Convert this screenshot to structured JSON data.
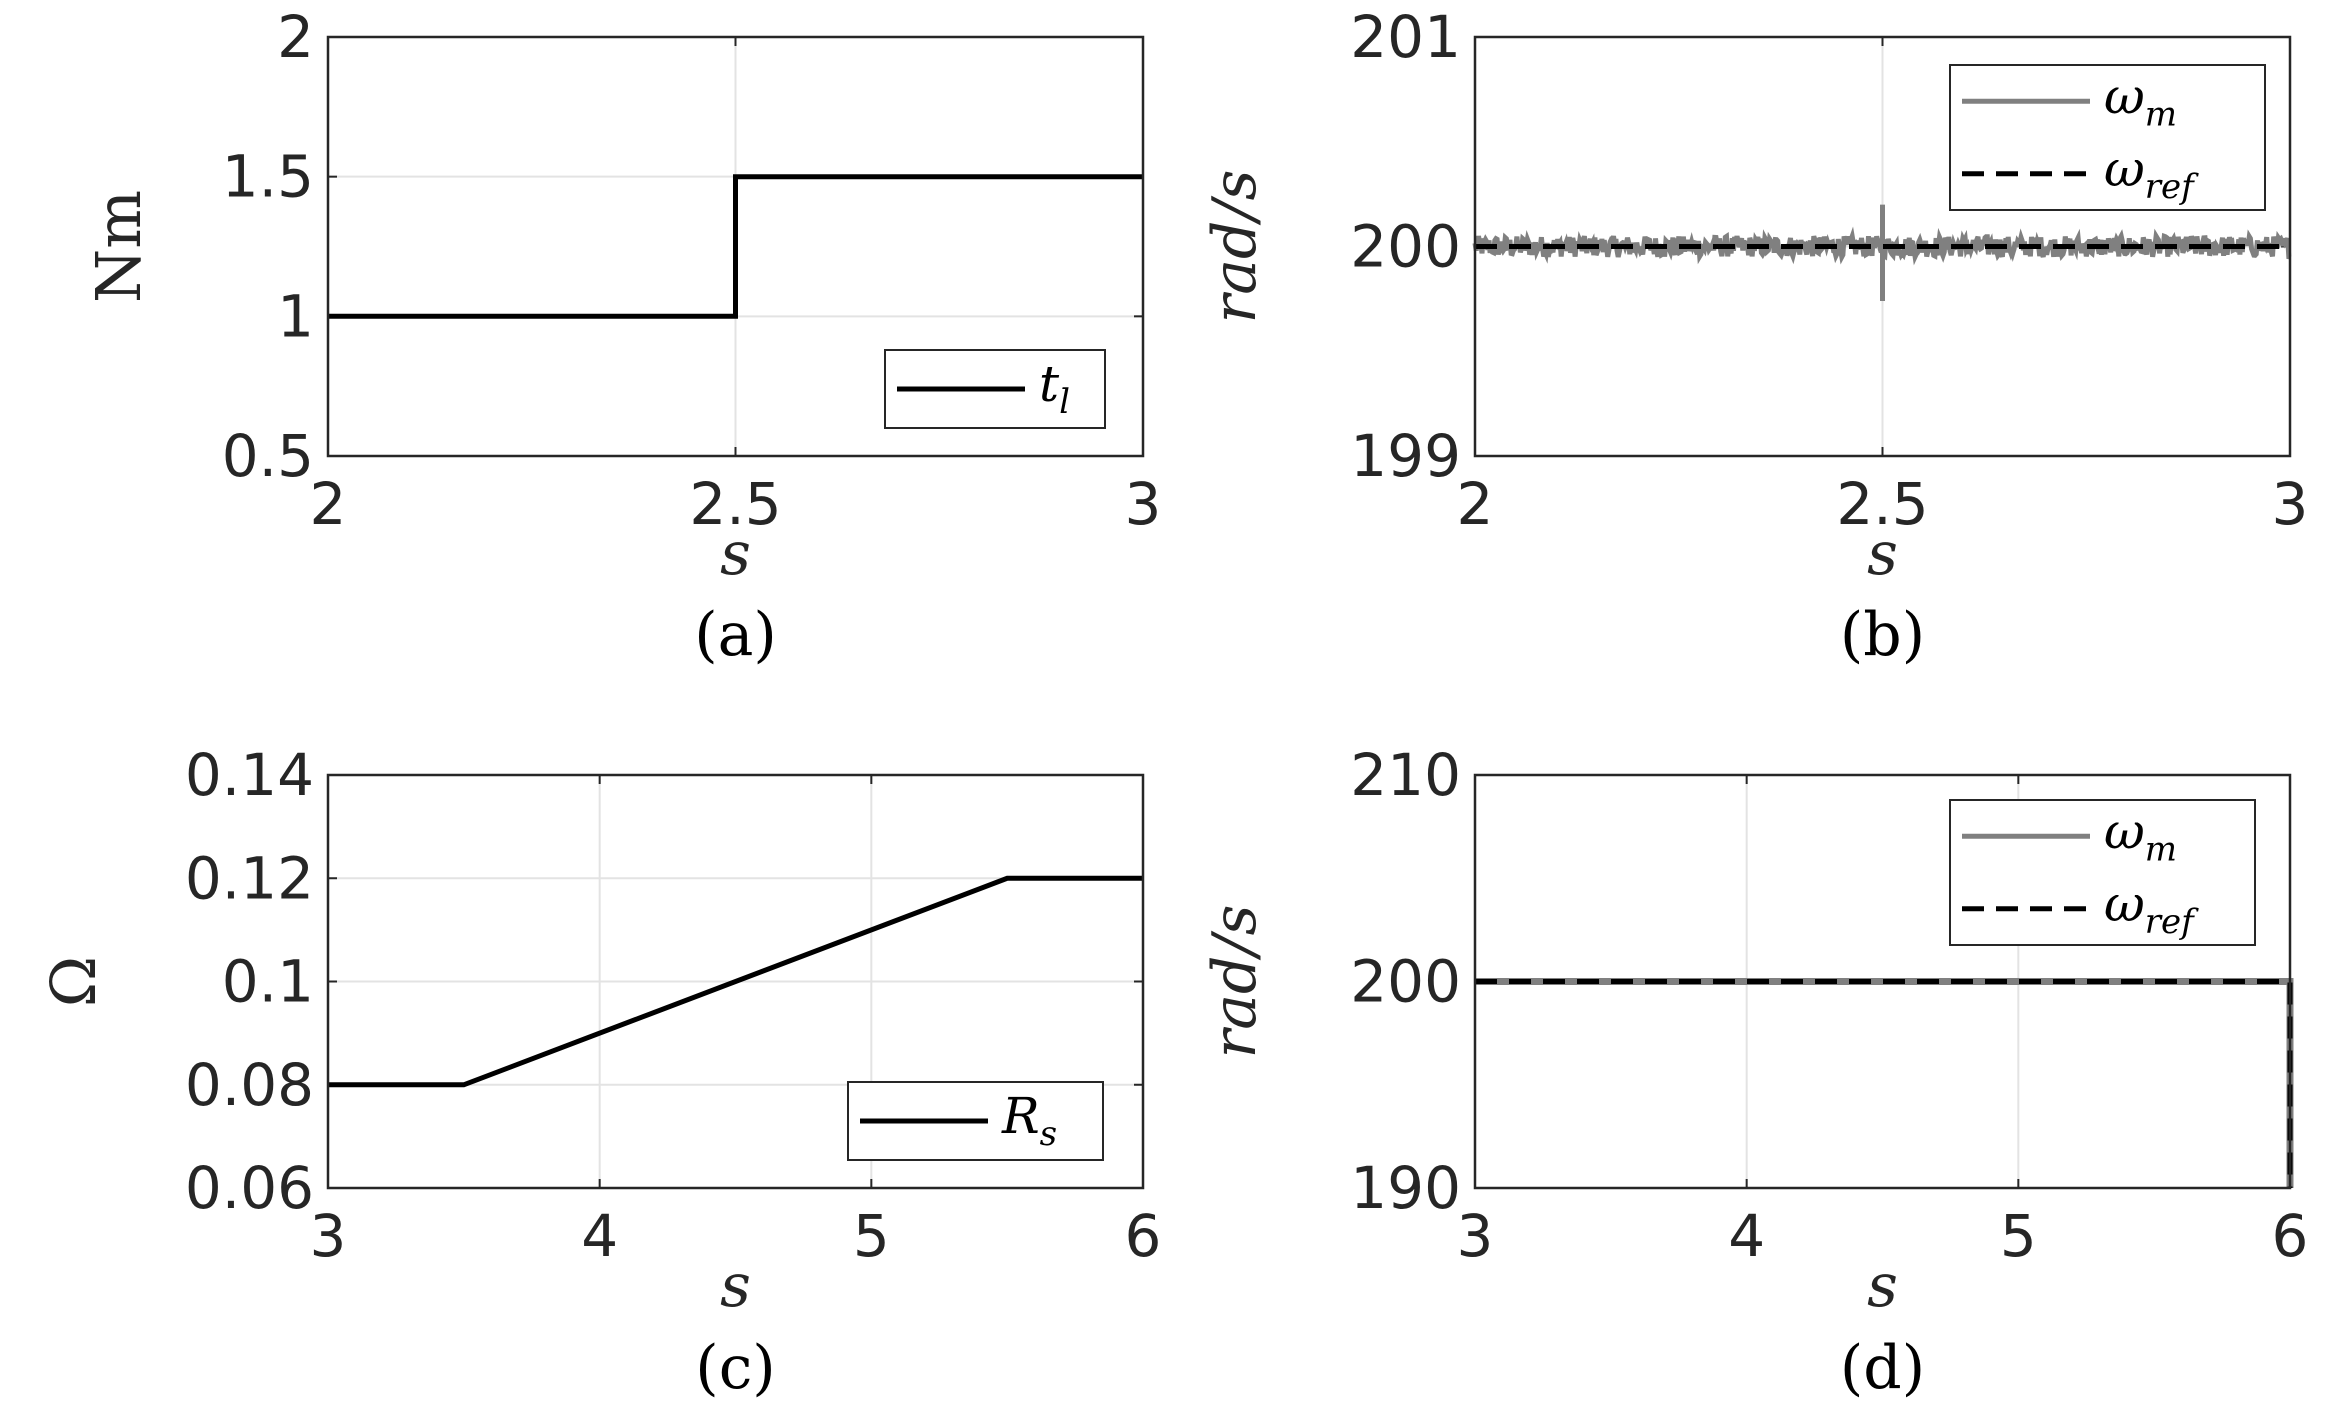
{
  "chart_data": [
    {
      "id": "a",
      "type": "line",
      "caption": "(a)",
      "xlabel": "s",
      "ylabel": "Nm",
      "xlim": [
        2,
        3
      ],
      "ylim": [
        0.5,
        2
      ],
      "xticks": [
        "2",
        "2.5",
        "3"
      ],
      "yticks": [
        "0.5",
        "1",
        "1.5",
        "2"
      ],
      "grid": true,
      "legend_position": "bottom-right",
      "series": [
        {
          "name": "t",
          "sub": "l",
          "style": "solid",
          "color": "#000000",
          "x": [
            2,
            2.5,
            2.5,
            3
          ],
          "y": [
            1,
            1,
            1.5,
            1.5
          ]
        }
      ]
    },
    {
      "id": "b",
      "type": "line",
      "caption": "(b)",
      "xlabel": "s",
      "ylabel": "rad/s",
      "xlim": [
        2,
        3
      ],
      "ylim": [
        199,
        201
      ],
      "xticks": [
        "2",
        "2.5",
        "3"
      ],
      "yticks": [
        "199",
        "200",
        "201"
      ],
      "grid": true,
      "legend_position": "top-right",
      "series": [
        {
          "name": "ω",
          "sub": "m",
          "style": "noisy",
          "color": "#808080",
          "x": [
            2,
            3
          ],
          "y": [
            200,
            200
          ],
          "noise_amplitude": 0.05,
          "spike_at": 2.5,
          "spike_amplitude": 0.2
        },
        {
          "name": "ω",
          "sub": "ref",
          "style": "dashed",
          "color": "#000000",
          "x": [
            2,
            3
          ],
          "y": [
            200,
            200
          ]
        }
      ]
    },
    {
      "id": "c",
      "type": "line",
      "caption": "(c)",
      "xlabel": "s",
      "ylabel": "Ω",
      "xlim": [
        3,
        6
      ],
      "ylim": [
        0.06,
        0.14
      ],
      "xticks": [
        "3",
        "4",
        "5",
        "6"
      ],
      "yticks": [
        "0.06",
        "0.08",
        "0.1",
        "0.12",
        "0.14"
      ],
      "grid": true,
      "legend_position": "bottom-right",
      "series": [
        {
          "name": "R",
          "sub": "s",
          "style": "solid",
          "color": "#000000",
          "x": [
            3,
            3.5,
            5.5,
            6
          ],
          "y": [
            0.08,
            0.08,
            0.12,
            0.12
          ]
        }
      ]
    },
    {
      "id": "d",
      "type": "line",
      "caption": "(d)",
      "xlabel": "s",
      "ylabel": "rad/s",
      "xlim": [
        3,
        6
      ],
      "ylim": [
        190,
        210
      ],
      "xticks": [
        "3",
        "4",
        "5",
        "6"
      ],
      "yticks": [
        "190",
        "200",
        "210"
      ],
      "grid": true,
      "legend_position": "top-right",
      "series": [
        {
          "name": "ω",
          "sub": "m",
          "style": "solid",
          "color": "#808080",
          "x": [
            3,
            6,
            6
          ],
          "y": [
            200,
            200,
            190
          ]
        },
        {
          "name": "ω",
          "sub": "ref",
          "style": "dashed",
          "color": "#000000",
          "x": [
            3,
            6,
            6
          ],
          "y": [
            200,
            200,
            190
          ]
        }
      ]
    }
  ]
}
